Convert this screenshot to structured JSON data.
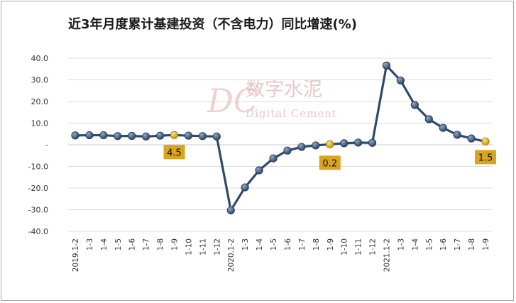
{
  "chart_data": {
    "type": "line",
    "title": "近3年月度累计基建投资（不含电力）同比增速(%)",
    "xlabel": "",
    "ylabel": "",
    "ylim": [
      -40,
      40
    ],
    "yticks": [
      "40.0",
      "30.0",
      "20.0",
      "10.0",
      "-",
      "-10.0",
      "-20.0",
      "-30.0",
      "-40.0"
    ],
    "ytick_values": [
      40,
      30,
      20,
      10,
      0,
      -10,
      -20,
      -30,
      -40
    ],
    "grid": true,
    "categories": [
      "2019.1-2",
      "1-3",
      "1-4",
      "1-5",
      "1-6",
      "1-7",
      "1-8",
      "1-9",
      "1-10",
      "1-11",
      "1-12",
      "2020.1-2",
      "1-3",
      "1-4",
      "1-5",
      "1-6",
      "1-7",
      "1-8",
      "1-9",
      "1-10",
      "1-11",
      "1-12",
      "2021.1-2",
      "1-3",
      "1-4",
      "1-5",
      "1-6",
      "1-7",
      "1-8",
      "1-9"
    ],
    "series": [
      {
        "values": [
          4.3,
          4.4,
          4.4,
          4.0,
          4.1,
          3.8,
          4.2,
          4.5,
          4.2,
          4.0,
          3.8,
          -30.3,
          -19.7,
          -11.8,
          -6.3,
          -2.7,
          -1.0,
          -0.3,
          0.2,
          0.7,
          1.0,
          0.9,
          36.6,
          29.7,
          18.4,
          11.8,
          7.8,
          4.6,
          2.9,
          1.5
        ],
        "color": "#2e4a6b",
        "highlight_indices": [
          7,
          18,
          29
        ],
        "highlight_color": "#e3b21a"
      }
    ],
    "annotations": [
      {
        "index": 7,
        "text": "4.5"
      },
      {
        "index": 18,
        "text": "0.2"
      },
      {
        "index": 29,
        "text": "1.5"
      }
    ],
    "annotation_bg": "#d9a520"
  },
  "watermark": {
    "logo": "DC",
    "cn": "数字水泥",
    "en": "Digital Cement"
  }
}
